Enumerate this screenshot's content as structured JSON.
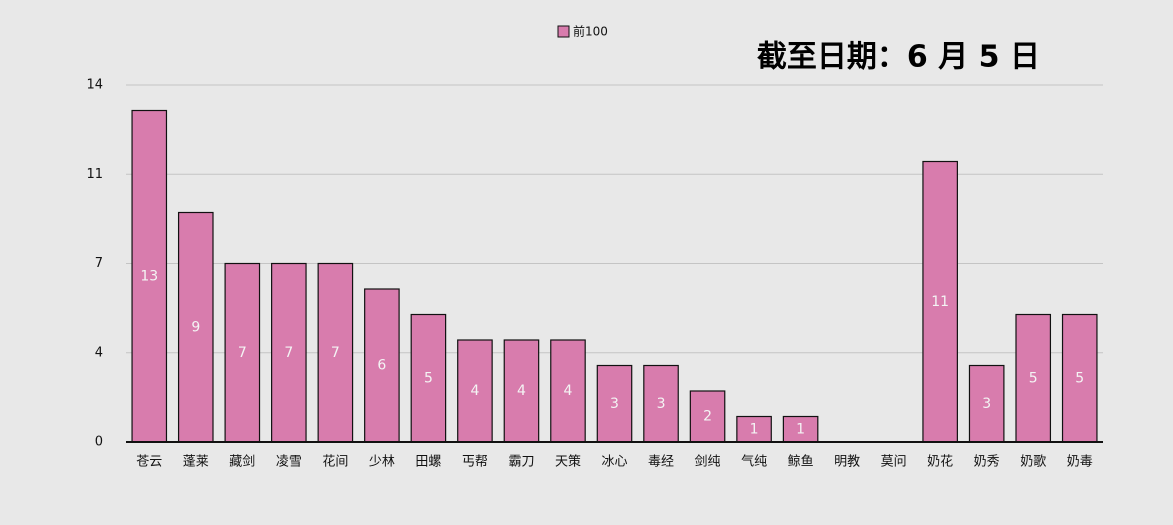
{
  "chart_data": {
    "type": "bar",
    "annotation": "截至日期：6 月 5 日",
    "categories": [
      "苍云",
      "蓬莱",
      "藏剑",
      "凌雪",
      "花间",
      "少林",
      "田螺",
      "丐帮",
      "霸刀",
      "天策",
      "冰心",
      "毒经",
      "剑纯",
      "气纯",
      "鲸鱼",
      "明教",
      "莫问",
      "奶花",
      "奶秀",
      "奶歌",
      "奶毒"
    ],
    "series": [
      {
        "name": "前100",
        "color": "#d87cad",
        "values": [
          13,
          9,
          7,
          7,
          7,
          6,
          5,
          4,
          4,
          4,
          3,
          3,
          2,
          1,
          1,
          0,
          0,
          11,
          3,
          5,
          5
        ]
      }
    ],
    "ylim": [
      0,
      14
    ],
    "yticks": [
      0,
      {
        "value": 3.5,
        "label": "4"
      },
      7,
      {
        "value": 10.5,
        "label": "11"
      },
      14
    ],
    "grid": true,
    "legend": "top"
  }
}
